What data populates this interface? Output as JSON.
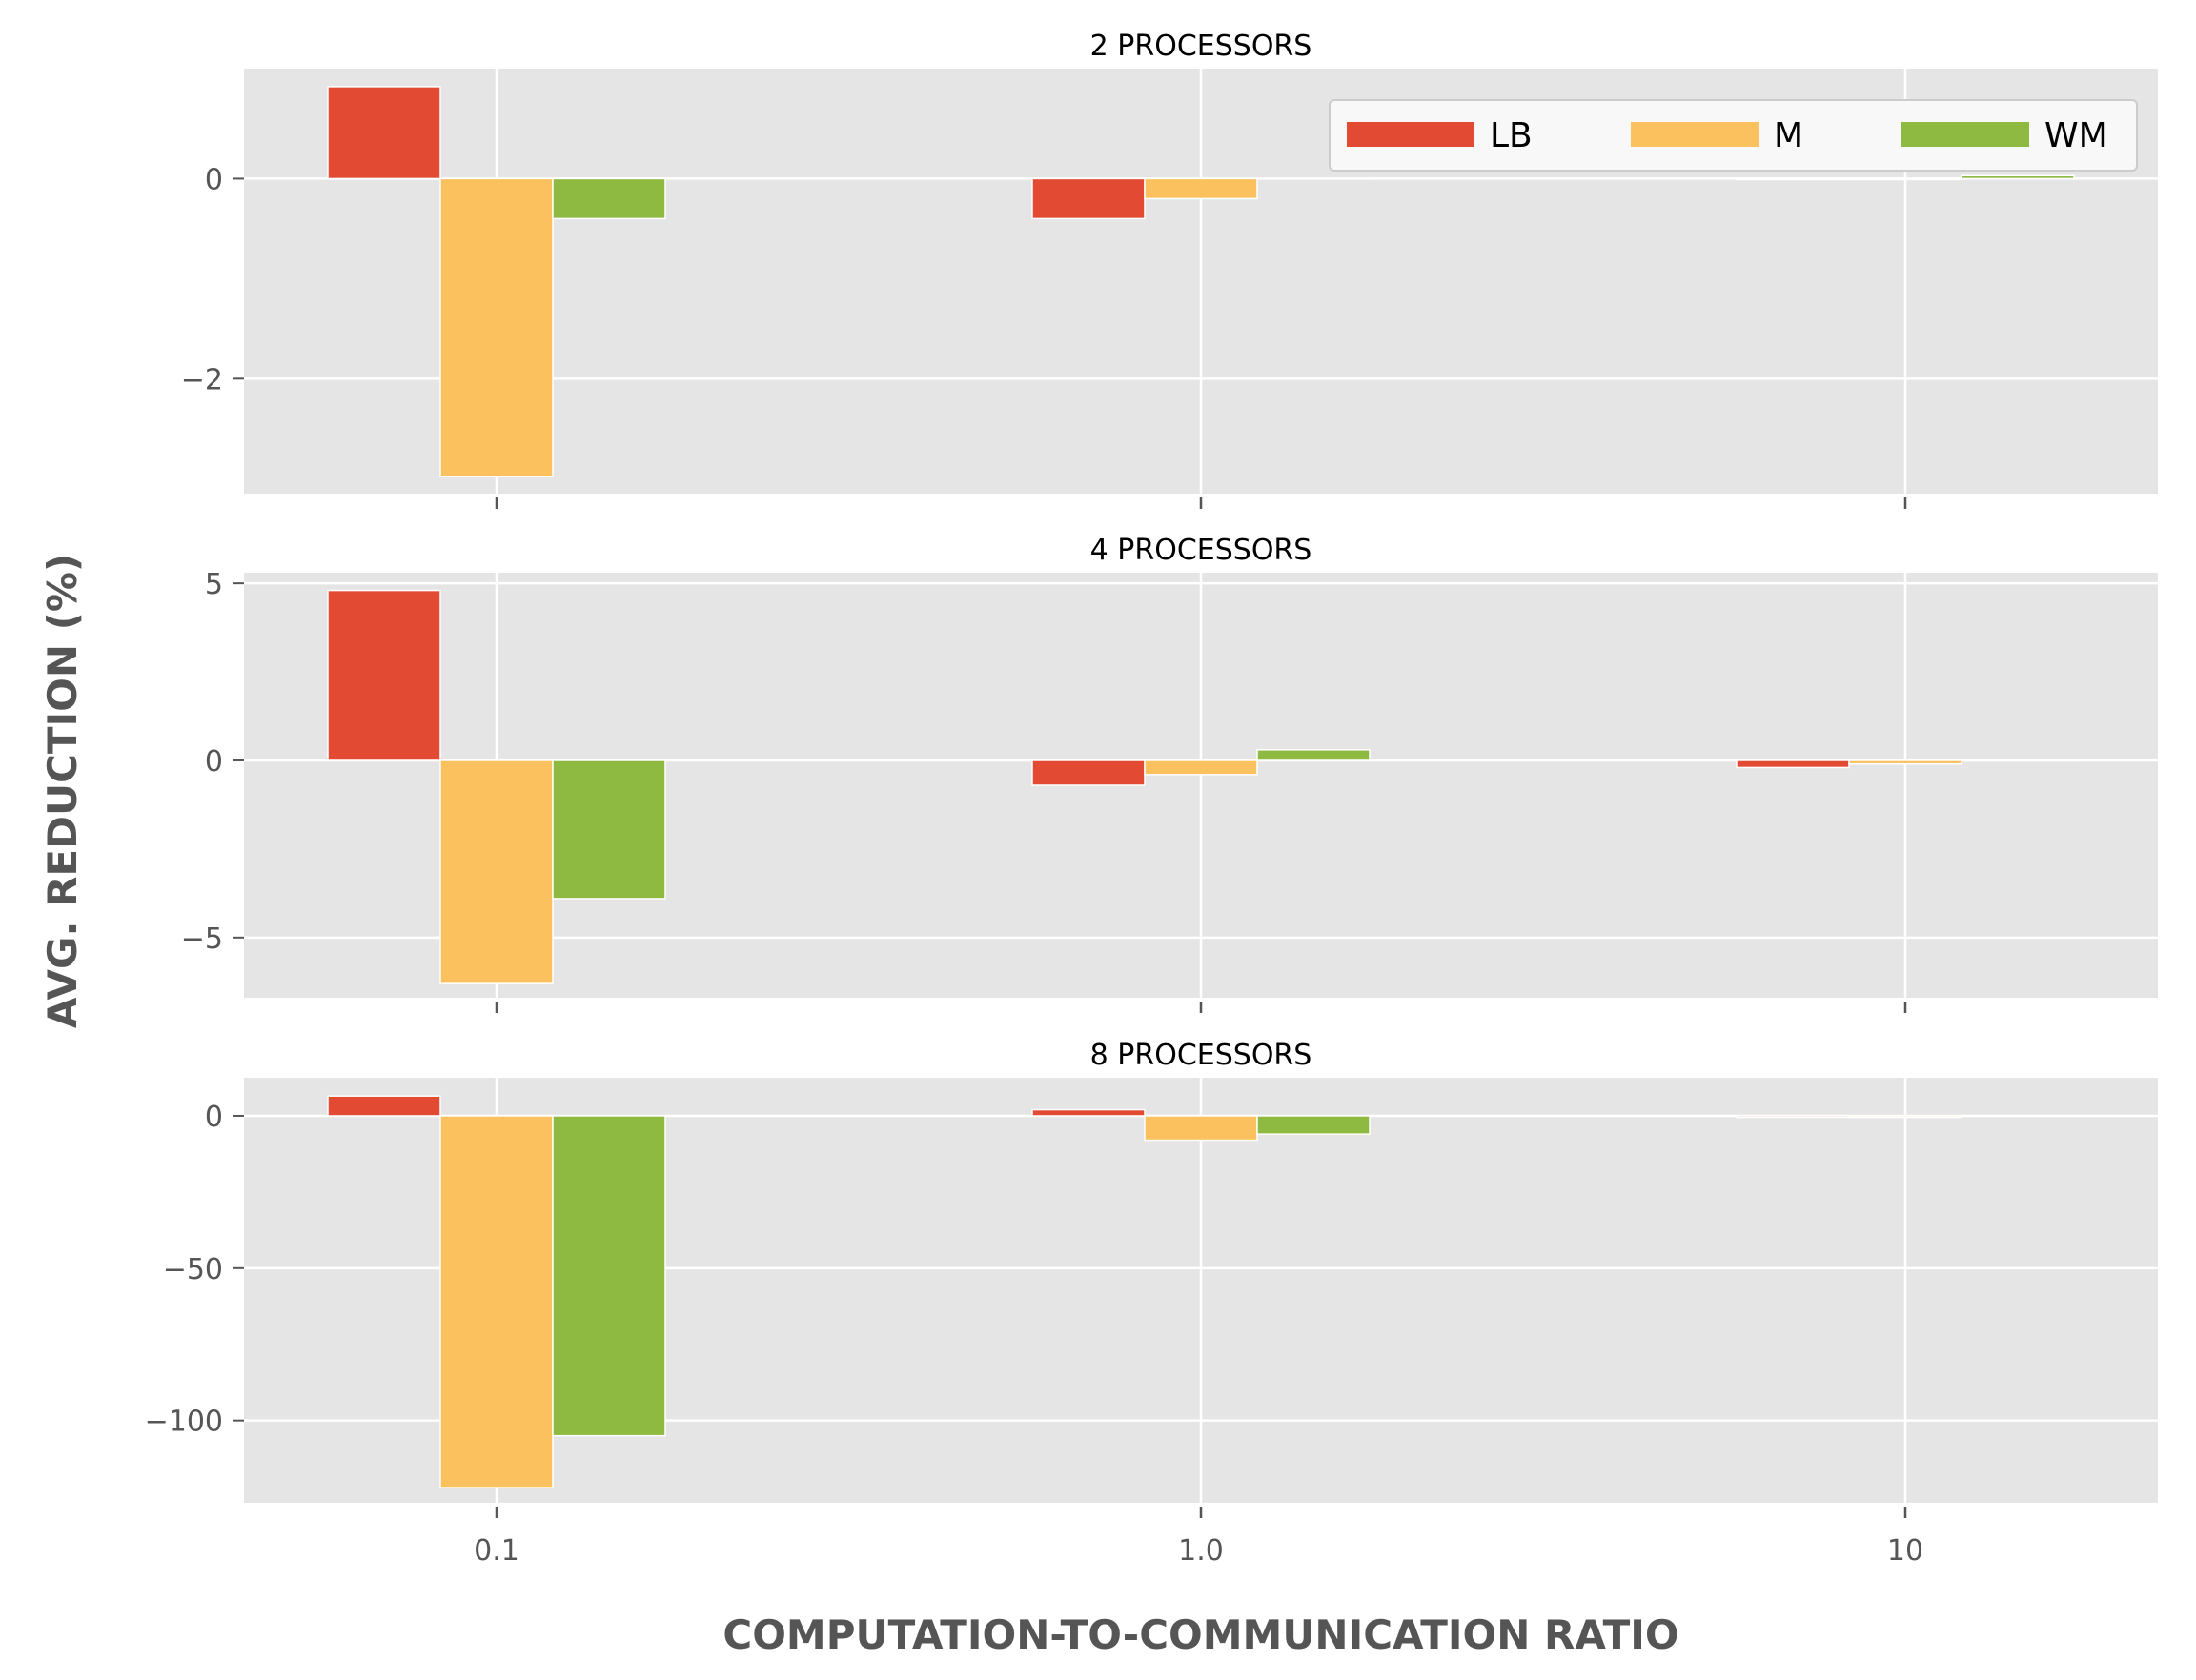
{
  "chart_data": {
    "type": "bar",
    "xlabel": "COMPUTATION-TO-COMMUNICATION RATIO",
    "ylabel": "AVG. REDUCTION (%)",
    "categories": [
      "0.1",
      "1.0",
      "10"
    ],
    "legend": {
      "placement": "top-right",
      "ncol": 3
    },
    "colors": {
      "LB": "#e24a33",
      "M": "#fbc15e",
      "WM": "#8eba42",
      "panel_bg": "#e5e5e5",
      "grid": "#ffffff"
    },
    "grid": true,
    "panels": [
      {
        "title": "2 PROCESSORS",
        "ylim": [
          -3.15,
          1.1
        ],
        "yticks": [
          0,
          -2
        ],
        "ytick_labels": [
          "0",
          "−2"
        ],
        "series": [
          {
            "name": "LB",
            "values": [
              0.92,
              -0.4,
              -0.01
            ]
          },
          {
            "name": "M",
            "values": [
              -2.98,
              -0.2,
              -0.01
            ]
          },
          {
            "name": "WM",
            "values": [
              -0.4,
              0.0,
              0.03
            ]
          }
        ]
      },
      {
        "title": "4 PROCESSORS",
        "ylim": [
          -6.7,
          5.3
        ],
        "yticks": [
          5,
          0,
          -5
        ],
        "ytick_labels": [
          "5",
          "0",
          "−5"
        ],
        "series": [
          {
            "name": "LB",
            "values": [
              4.8,
              -0.7,
              -0.2
            ]
          },
          {
            "name": "M",
            "values": [
              -6.3,
              -0.4,
              -0.1
            ]
          },
          {
            "name": "WM",
            "values": [
              -3.9,
              0.3,
              0.0
            ]
          }
        ]
      },
      {
        "title": "8 PROCESSORS",
        "ylim": [
          -127,
          12.5
        ],
        "yticks": [
          0,
          -50,
          -100
        ],
        "ytick_labels": [
          "0",
          "−50",
          "−100"
        ],
        "series": [
          {
            "name": "LB",
            "values": [
              6.5,
              2.0,
              -0.5
            ]
          },
          {
            "name": "M",
            "values": [
              -122,
              -8,
              -0.5
            ]
          },
          {
            "name": "WM",
            "values": [
              -105,
              -6,
              0.0
            ]
          }
        ]
      }
    ]
  }
}
